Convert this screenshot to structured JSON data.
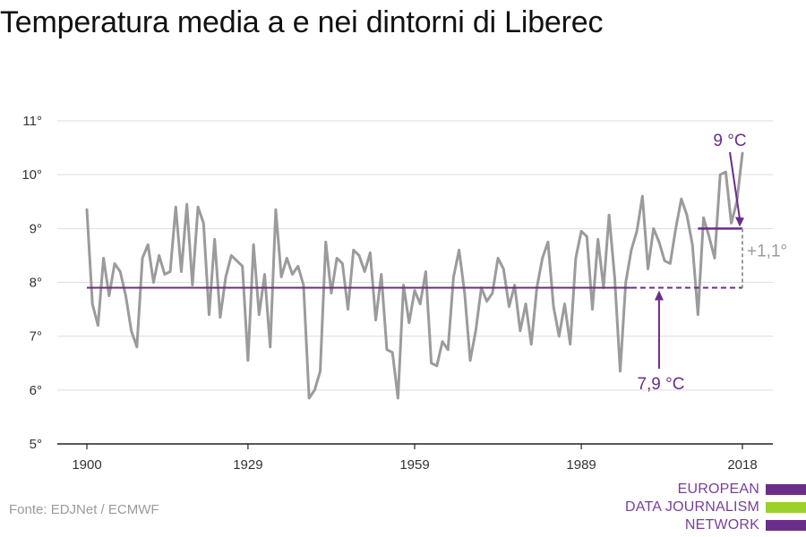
{
  "chart_data": {
    "type": "line",
    "title": "Temperatura media a e nei dintorni di Liberec",
    "xlabel": "",
    "ylabel": "",
    "xlim": [
      1900,
      2018
    ],
    "ylim": [
      5,
      11
    ],
    "x_ticks": [
      1900,
      1929,
      1959,
      1989,
      2018
    ],
    "y_ticks": [
      5,
      6,
      7,
      8,
      9,
      10,
      11
    ],
    "y_tick_labels": [
      "5°",
      "6°",
      "7°",
      "8°",
      "9°",
      "10°",
      "11°"
    ],
    "grid": true,
    "x": [
      1900,
      1901,
      1902,
      1903,
      1904,
      1905,
      1906,
      1907,
      1908,
      1909,
      1910,
      1911,
      1912,
      1913,
      1914,
      1915,
      1916,
      1917,
      1918,
      1919,
      1920,
      1921,
      1922,
      1923,
      1924,
      1925,
      1926,
      1927,
      1928,
      1929,
      1930,
      1931,
      1932,
      1933,
      1934,
      1935,
      1936,
      1937,
      1938,
      1939,
      1940,
      1941,
      1942,
      1943,
      1944,
      1945,
      1946,
      1947,
      1948,
      1949,
      1950,
      1951,
      1952,
      1953,
      1954,
      1955,
      1956,
      1957,
      1958,
      1959,
      1960,
      1961,
      1962,
      1963,
      1964,
      1965,
      1966,
      1967,
      1968,
      1969,
      1970,
      1971,
      1972,
      1973,
      1974,
      1975,
      1976,
      1977,
      1978,
      1979,
      1980,
      1981,
      1982,
      1983,
      1984,
      1985,
      1986,
      1987,
      1988,
      1989,
      1990,
      1991,
      1992,
      1993,
      1994,
      1995,
      1996,
      1997,
      1998,
      1999,
      2000,
      2001,
      2002,
      2003,
      2004,
      2005,
      2006,
      2007,
      2008,
      2009,
      2010,
      2011,
      2012,
      2013,
      2014,
      2015,
      2016,
      2017,
      2018
    ],
    "series": [
      {
        "values": [
          9.35,
          7.6,
          7.2,
          8.45,
          7.75,
          8.35,
          8.2,
          7.75,
          7.1,
          6.8,
          8.45,
          8.7,
          8.0,
          8.5,
          8.15,
          8.2,
          9.4,
          8.2,
          9.45,
          7.95,
          9.4,
          9.1,
          7.4,
          8.8,
          7.35,
          8.1,
          8.5,
          8.4,
          8.3,
          6.55,
          8.7,
          7.4,
          8.15,
          6.8,
          9.35,
          8.1,
          8.45,
          8.15,
          8.3,
          7.95,
          5.85,
          6.0,
          6.35,
          8.75,
          7.8,
          8.45,
          8.35,
          7.5,
          8.6,
          8.5,
          8.2,
          8.55,
          7.3,
          8.15,
          6.75,
          6.7,
          5.85,
          7.95,
          7.25,
          7.85,
          7.6,
          8.2,
          6.5,
          6.45,
          6.9,
          6.75,
          8.1,
          8.6,
          7.8,
          6.55,
          7.1,
          7.9,
          7.65,
          7.8,
          8.45,
          8.25,
          7.55,
          7.95,
          7.1,
          7.6,
          6.85,
          7.9,
          8.45,
          8.75,
          7.55,
          7.0,
          7.6,
          6.85,
          8.45,
          8.95,
          8.85,
          7.5,
          8.8,
          7.9,
          9.25,
          8.1,
          6.35,
          8.0,
          8.6,
          8.95,
          9.6,
          8.25,
          9.0,
          8.75,
          8.4,
          8.35,
          9.0,
          9.55,
          9.25,
          8.7,
          7.4,
          9.2,
          8.85,
          8.45,
          10.0,
          10.05,
          9.1,
          9.5,
          10.4
        ],
        "color": "#9b9b9b"
      }
    ],
    "reference_lines": {
      "baseline": {
        "value": 7.9,
        "label": "7,9 °C",
        "from": 1900,
        "to": 2018,
        "solid_until": 1998,
        "color": "#6b2d8a"
      },
      "recent": {
        "value": 9.0,
        "label": "9 °C",
        "from": 2010,
        "to": 2018,
        "color": "#6b2d8a"
      },
      "difference_label": "+1,1°",
      "difference_color": "#9a9a9a"
    },
    "axis_color": "#222222",
    "grid_color": "#dddddd",
    "label_color": "#333333"
  },
  "source": "Fonte: EDJNet / ECMWF",
  "logo": {
    "lines": [
      "EUROPEAN",
      "DATA JOURNALISM",
      "NETWORK"
    ],
    "text_color": "#7a3f98",
    "bar_colors": [
      "#6b2d8a",
      "#9ad12b",
      "#6b2d8a"
    ]
  }
}
